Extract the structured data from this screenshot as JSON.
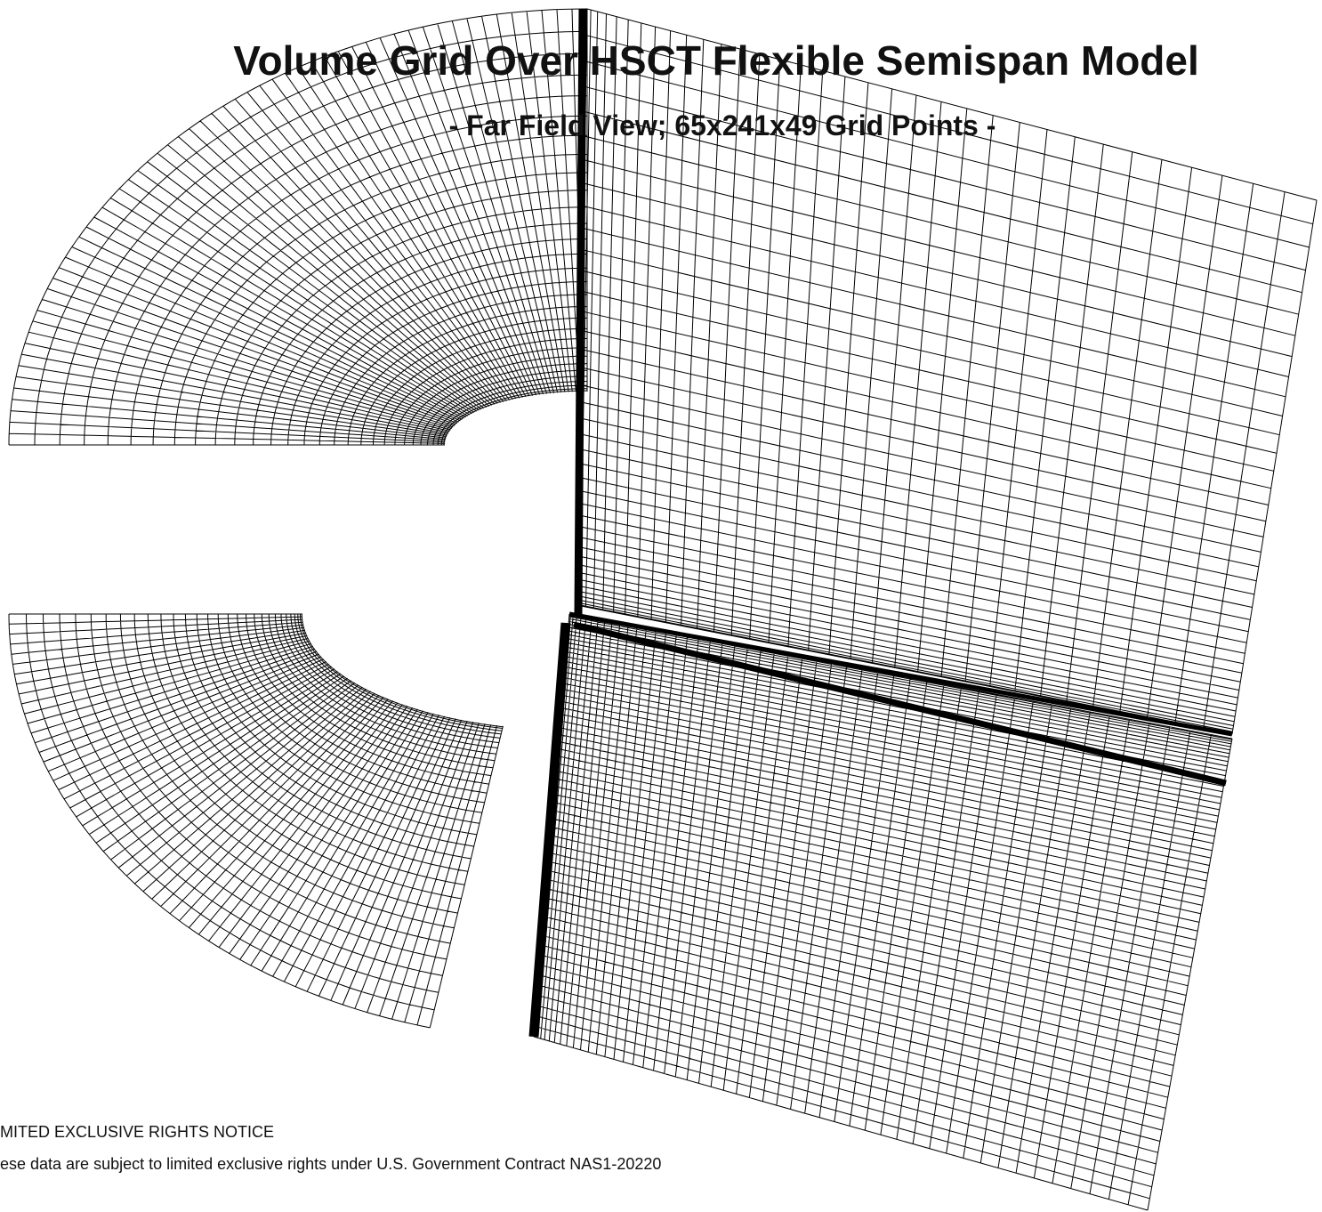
{
  "header": {
    "title": "Volume Grid Over HSCT Flexible Semispan Model",
    "subtitle": "- Far Field View; 65x241x49 Grid Points -"
  },
  "notice": {
    "heading": "MITED EXCLUSIVE RIGHTS NOTICE",
    "text": "ese data are subject to limited exclusive rights under U.S. Government Contract NAS1-20220"
  }
}
